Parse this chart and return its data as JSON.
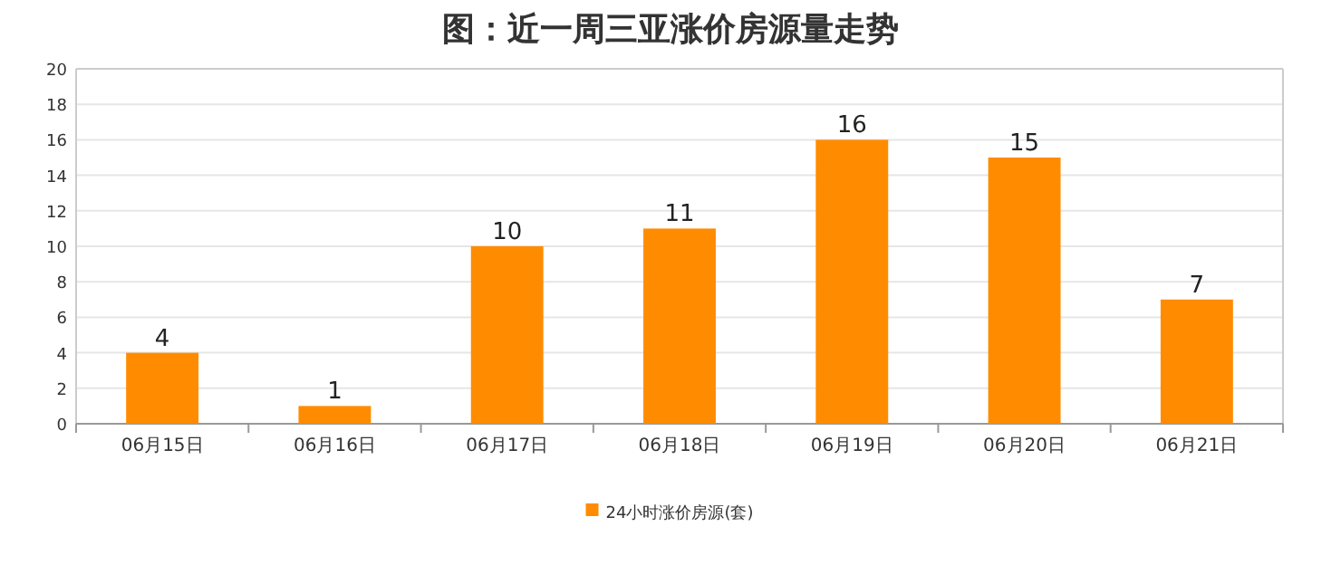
{
  "chart_data": {
    "type": "bar",
    "title": "图：近一周三亚涨价房源量走势",
    "categories": [
      "06月15日",
      "06月16日",
      "06月17日",
      "06月18日",
      "06月19日",
      "06月20日",
      "06月21日"
    ],
    "series": [
      {
        "name": "24小时涨价房源(套)",
        "color": "#ff8c00",
        "values": [
          4,
          1,
          10,
          11,
          16,
          15,
          7
        ]
      }
    ],
    "ylim": [
      0,
      20
    ],
    "yticks": [
      0,
      2,
      4,
      6,
      8,
      10,
      12,
      14,
      16,
      18,
      20
    ],
    "grid": "y",
    "legend": "bottom",
    "data_labels": true
  }
}
